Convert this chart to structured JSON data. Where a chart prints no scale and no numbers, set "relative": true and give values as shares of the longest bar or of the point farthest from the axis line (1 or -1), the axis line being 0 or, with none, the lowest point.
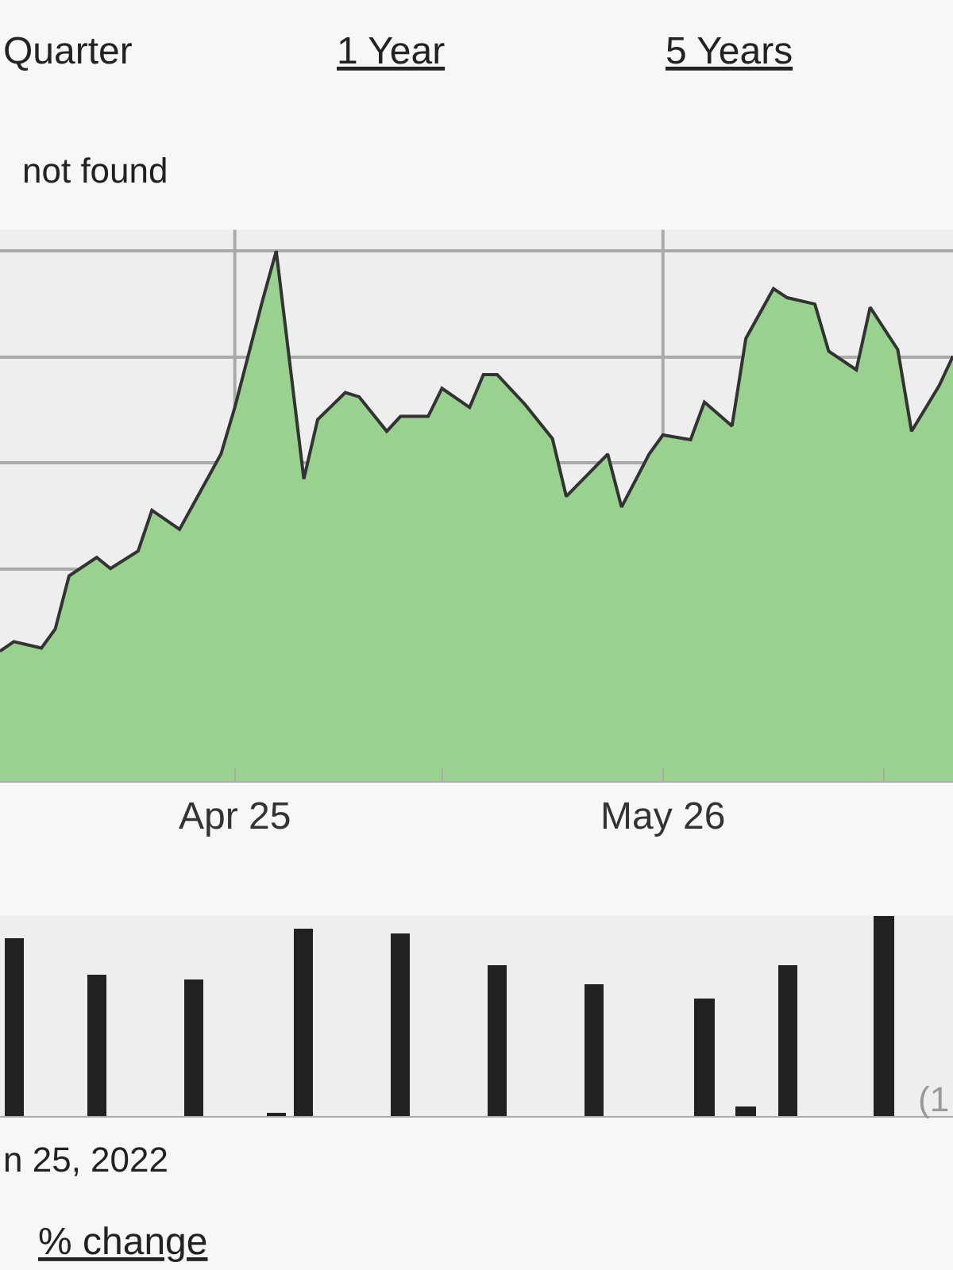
{
  "chart_data": [
    {
      "type": "area",
      "relative": true,
      "annotations": [
        "Quarter",
        "1 Year",
        "5 Years",
        "not found",
        "(1",
        "n 25, 2022",
        "% change"
      ],
      "x": [
        "2022-04-08",
        "2022-04-09",
        "2022-04-11",
        "2022-04-12",
        "2022-04-13",
        "2022-04-15",
        "2022-04-16",
        "2022-04-18",
        "2022-04-19",
        "2022-04-21",
        "2022-04-24",
        "2022-04-25",
        "2022-04-27",
        "2022-04-28",
        "2022-04-30",
        "2022-05-01",
        "2022-05-03",
        "2022-05-04",
        "2022-05-06",
        "2022-05-07",
        "2022-05-09",
        "2022-05-10",
        "2022-05-12",
        "2022-05-13",
        "2022-05-14",
        "2022-05-16",
        "2022-05-18",
        "2022-05-19",
        "2022-05-22",
        "2022-05-23",
        "2022-05-25",
        "2022-05-26",
        "2022-05-28",
        "2022-05-29",
        "2022-05-31",
        "2022-06-01",
        "2022-06-03",
        "2022-06-04",
        "2022-06-06",
        "2022-06-07",
        "2022-06-09",
        "2022-06-10",
        "2022-06-12",
        "2022-06-13",
        "2022-06-15",
        "2022-06-16"
      ],
      "series": [
        {
          "color": "#99d18f",
          "values": [
            0.245,
            0.263,
            0.251,
            0.287,
            0.387,
            0.422,
            0.401,
            0.434,
            0.511,
            0.475,
            0.617,
            0.705,
            0.906,
            1.0,
            0.57,
            0.682,
            0.733,
            0.725,
            0.66,
            0.688,
            0.688,
            0.741,
            0.705,
            0.767,
            0.767,
            0.711,
            0.646,
            0.537,
            0.617,
            0.517,
            0.617,
            0.653,
            0.644,
            0.715,
            0.67,
            0.835,
            0.929,
            0.912,
            0.9,
            0.811,
            0.776,
            0.894,
            0.814,
            0.66,
            0.746,
            0.802
          ]
        }
      ],
      "xlim": [
        "2022-04-08",
        "2022-06-16"
      ],
      "xticks": [
        {
          "value": "2022-04-25",
          "label": "Apr 25"
        },
        {
          "value": "2022-05-10",
          "label": null
        },
        {
          "value": "2022-05-26",
          "label": "May 26"
        },
        {
          "value": "2022-06-11",
          "label": null
        }
      ],
      "tick_labels": "x",
      "grid": true
    },
    {
      "type": "bar",
      "relative": true,
      "x": [
        "2022-04-09",
        "2022-04-15",
        "2022-04-22",
        "2022-04-28",
        "2022-04-30",
        "2022-05-07",
        "2022-05-14",
        "2022-05-21",
        "2022-05-29",
        "2022-06-01",
        "2022-06-04",
        "2022-06-11"
      ],
      "series": [
        {
          "color": "#222222",
          "values": [
            0.888,
            0.706,
            0.685,
            0.021,
            0.936,
            0.912,
            0.755,
            0.661,
            0.591,
            0.048,
            0.755,
            1.0
          ]
        }
      ],
      "xlim": [
        "2022-04-08",
        "2022-06-16"
      ],
      "tick_labels": false
    }
  ]
}
